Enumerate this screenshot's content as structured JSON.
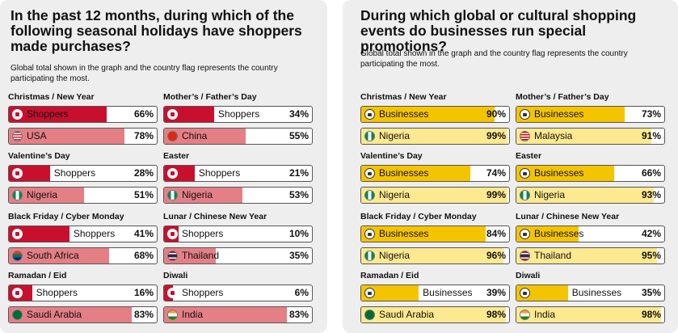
{
  "left": {
    "title": "In the past 12 months, during which of the following seasonal holidays have shoppers made purchases?",
    "subtitle": "Global total shown in the graph and the country flag represents the country participating the most."
  },
  "right": {
    "title": "During which global or cultural shopping events do businesses run special promotions?",
    "subtitle": "Global total shown in the graph and the country flag represents the country participating the most."
  },
  "colors": {
    "shopper_fill": "#c8102e",
    "shopper_country_fill": "#e57f86",
    "business_fill": "#f5c400",
    "business_country_fill": "#fde98f"
  },
  "chart_data": [
    {
      "type": "bar",
      "title": "In the past 12 months, during which of the following seasonal holidays have shoppers made purchases?",
      "unit": "%",
      "xlim": [
        0,
        100
      ],
      "categories": [
        {
          "name": "Christmas / New Year",
          "global_label": "Shoppers",
          "global_value": 66,
          "country": "USA",
          "country_value": 78,
          "flag": "usa-flag-icon"
        },
        {
          "name": "Mother’s / Father’s Day",
          "global_label": "Shoppers",
          "global_value": 34,
          "country": "China",
          "country_value": 55,
          "flag": "china-flag-icon"
        },
        {
          "name": "Valentine’s Day",
          "global_label": "Shoppers",
          "global_value": 28,
          "country": "Nigeria",
          "country_value": 51,
          "flag": "nigeria-flag-icon"
        },
        {
          "name": "Easter",
          "global_label": "Shoppers",
          "global_value": 21,
          "country": "Nigeria",
          "country_value": 53,
          "flag": "nigeria-flag-icon"
        },
        {
          "name": "Black Friday / Cyber Monday",
          "global_label": "Shoppers",
          "global_value": 41,
          "country": "South Africa",
          "country_value": 68,
          "flag": "south-africa-flag-icon"
        },
        {
          "name": "Lunar / Chinese New Year",
          "global_label": "Shoppers",
          "global_value": 10,
          "country": "Thailand",
          "country_value": 35,
          "flag": "thailand-flag-icon"
        },
        {
          "name": "Ramadan / Eid",
          "global_label": "Shoppers",
          "global_value": 16,
          "country": "Saudi Arabia",
          "country_value": 83,
          "flag": "saudi-arabia-flag-icon"
        },
        {
          "name": "Diwali",
          "global_label": "Shoppers",
          "global_value": 6,
          "country": "India",
          "country_value": 83,
          "flag": "india-flag-icon"
        }
      ]
    },
    {
      "type": "bar",
      "title": "During which global or cultural shopping events do businesses run special promotions?",
      "unit": "%",
      "xlim": [
        0,
        100
      ],
      "categories": [
        {
          "name": "Christmas / New Year",
          "global_label": "Businesses",
          "global_value": 90,
          "country": "Nigeria",
          "country_value": 99,
          "flag": "nigeria-flag-icon"
        },
        {
          "name": "Mother’s / Father’s Day",
          "global_label": "Businesses",
          "global_value": 73,
          "country": "Malaysia",
          "country_value": 91,
          "flag": "malaysia-flag-icon"
        },
        {
          "name": "Valentine’s Day",
          "global_label": "Businesses",
          "global_value": 74,
          "country": "Nigeria",
          "country_value": 99,
          "flag": "nigeria-flag-icon"
        },
        {
          "name": "Easter",
          "global_label": "Businesses",
          "global_value": 66,
          "country": "Nigeria",
          "country_value": 93,
          "flag": "nigeria-flag-icon"
        },
        {
          "name": "Black Friday / Cyber Monday",
          "global_label": "Businesses",
          "global_value": 84,
          "country": "Nigeria",
          "country_value": 96,
          "flag": "nigeria-flag-icon"
        },
        {
          "name": "Lunar / Chinese New Year",
          "global_label": "Businesses",
          "global_value": 42,
          "country": "Thailand",
          "country_value": 95,
          "flag": "thailand-flag-icon"
        },
        {
          "name": "Ramadan / Eid",
          "global_label": "Businesses",
          "global_value": 39,
          "country": "Saudi Arabia",
          "country_value": 98,
          "flag": "saudi-arabia-flag-icon"
        },
        {
          "name": "Diwali",
          "global_label": "Businesses",
          "global_value": 35,
          "country": "India",
          "country_value": 98,
          "flag": "india-flag-icon"
        }
      ]
    }
  ]
}
